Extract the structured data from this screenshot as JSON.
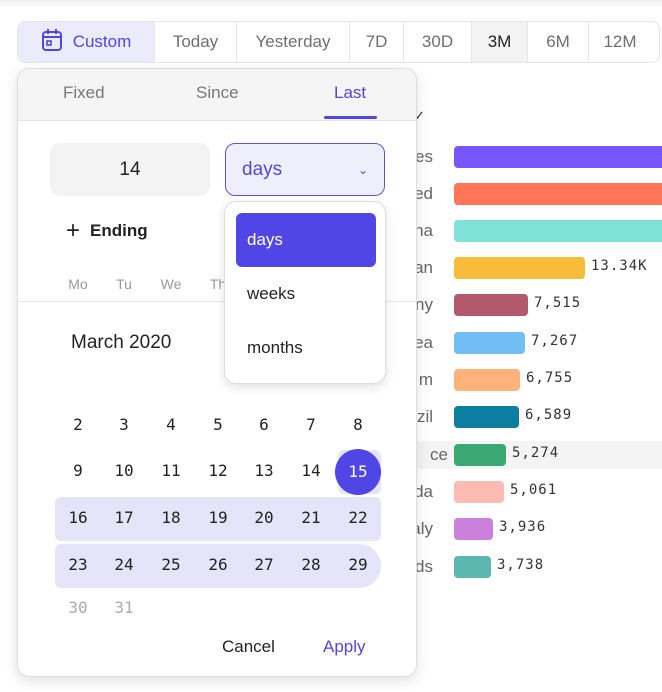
{
  "range_bar": {
    "options": [
      {
        "label": "Custom",
        "icon": "calendar-icon",
        "state": "selected"
      },
      {
        "label": "Today"
      },
      {
        "label": "Yesterday"
      },
      {
        "label": "7D"
      },
      {
        "label": "30D"
      },
      {
        "label": "3M",
        "state": "active"
      },
      {
        "label": "6M"
      },
      {
        "label": "12M"
      }
    ],
    "accent": "#4f46e5"
  },
  "background_chart": {
    "rows": [
      {
        "label": "es",
        "value": null,
        "value_label": "",
        "color": "#7856ff"
      },
      {
        "label": "ed",
        "value": null,
        "value_label": "",
        "color": "#ff7557"
      },
      {
        "label": "na",
        "value": null,
        "value_label": "",
        "color": "#80e1d9"
      },
      {
        "label": "an",
        "value": 13340,
        "value_label": "13.34K",
        "color": "#f8bc3b"
      },
      {
        "label": "ny",
        "value": 7515,
        "value_label": "7,515",
        "color": "#b2596e"
      },
      {
        "label": "ea",
        "value": 7267,
        "value_label": "7,267",
        "color": "#72bef4"
      },
      {
        "label": "m",
        "value": 6755,
        "value_label": "6,755",
        "color": "#ffb27a"
      },
      {
        "label": "zil",
        "value": 6589,
        "value_label": "6,589",
        "color": "#0d7ea0"
      },
      {
        "label": "ce",
        "value": 5274,
        "value_label": "5,274",
        "color": "#3ba974",
        "highlight": true
      },
      {
        "label": "da",
        "value": 5061,
        "value_label": "5,061",
        "color": "#febbb2"
      },
      {
        "label": "aly",
        "value": 3936,
        "value_label": "3,936",
        "color": "#cb80dc"
      },
      {
        "label": "ds",
        "value": 3738,
        "value_label": "3,738",
        "color": "#5bb7af"
      }
    ]
  },
  "popover": {
    "tabs": [
      {
        "label": "Fixed"
      },
      {
        "label": "Since"
      },
      {
        "label": "Last",
        "active": true
      }
    ],
    "amount": "14",
    "unit": "days",
    "unit_options": [
      {
        "label": "days",
        "selected": true
      },
      {
        "label": "weeks"
      },
      {
        "label": "months"
      }
    ],
    "ending_label": "Ending",
    "weekdays": [
      "Mo",
      "Tu",
      "We",
      "Th"
    ],
    "month_title": "March 2020",
    "weeks": [
      [
        "2",
        "3",
        "4",
        "5",
        "6",
        "7",
        "8"
      ],
      [
        "9",
        "10",
        "11",
        "12",
        "13",
        "14",
        "15"
      ],
      [
        "16",
        "17",
        "18",
        "19",
        "20",
        "21",
        "22"
      ],
      [
        "23",
        "24",
        "25",
        "26",
        "27",
        "28",
        "29"
      ],
      [
        "30",
        "31"
      ]
    ],
    "selected_day": "15",
    "range_end_day": "29",
    "cancel_label": "Cancel",
    "apply_label": "Apply"
  }
}
